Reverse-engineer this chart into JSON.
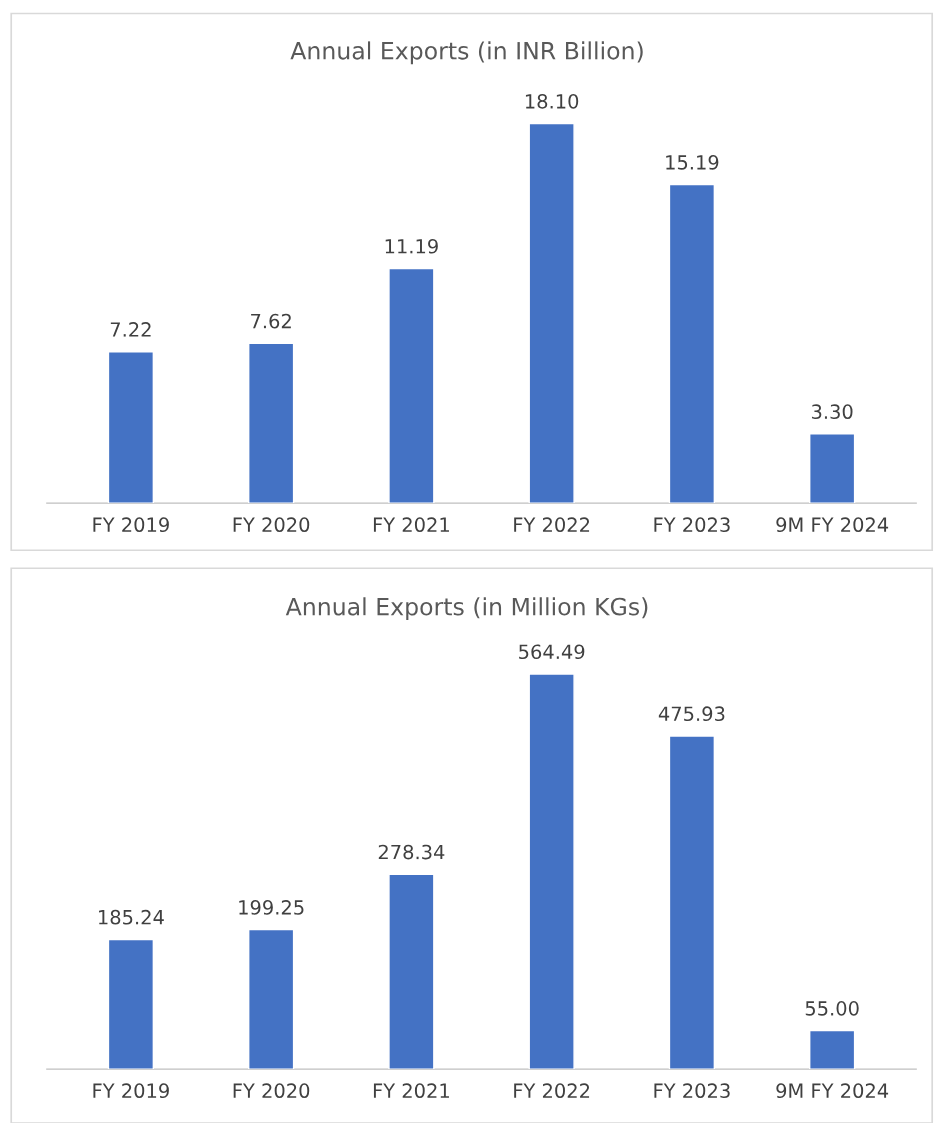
{
  "chart_data": [
    {
      "type": "bar",
      "title": "Annual Exports (in INR Billion)",
      "categories": [
        "FY 2019",
        "FY 2020",
        "FY 2021",
        "FY 2022",
        "FY 2023",
        "9M FY 2024"
      ],
      "values": [
        7.22,
        7.62,
        11.19,
        18.1,
        15.19,
        3.3
      ],
      "value_labels": [
        "7.22",
        "7.62",
        "11.19",
        "18.10",
        "15.19",
        "3.30"
      ],
      "color": "#4472c4",
      "grid": false,
      "legend": false
    },
    {
      "type": "bar",
      "title": "Annual Exports (in Million KGs)",
      "categories": [
        "FY 2019",
        "FY 2020",
        "FY 2021",
        "FY 2022",
        "FY 2023",
        "9M FY 2024"
      ],
      "values": [
        185.24,
        199.25,
        278.34,
        564.49,
        475.93,
        55.0
      ],
      "value_labels": [
        "185.24",
        "199.25",
        "278.34",
        "564.49",
        "475.93",
        "55.00"
      ],
      "color": "#4472c4",
      "grid": false,
      "legend": false
    }
  ]
}
